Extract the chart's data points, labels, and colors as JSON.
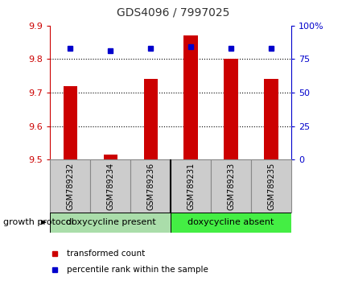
{
  "title": "GDS4096 / 7997025",
  "samples": [
    "GSM789232",
    "GSM789234",
    "GSM789236",
    "GSM789231",
    "GSM789233",
    "GSM789235"
  ],
  "red_values": [
    9.72,
    9.515,
    9.74,
    9.87,
    9.8,
    9.74
  ],
  "blue_values": [
    83,
    81,
    83,
    84,
    83,
    83
  ],
  "ymin": 9.5,
  "ymax": 9.9,
  "y2min": 0,
  "y2max": 100,
  "yticks": [
    9.5,
    9.6,
    9.7,
    9.8,
    9.9
  ],
  "y2ticks": [
    0,
    25,
    50,
    75,
    100
  ],
  "ytick_labels": [
    "9.5",
    "9.6",
    "9.7",
    "9.8",
    "9.9"
  ],
  "y2tick_labels": [
    "0",
    "25",
    "50",
    "75",
    "100%"
  ],
  "group1_label": "doxycycline present",
  "group2_label": "doxycycline absent",
  "group1_color": "#aaddaa",
  "group2_color": "#44ee44",
  "protocol_label": "growth protocol",
  "legend_red": "transformed count",
  "legend_blue": "percentile rank within the sample",
  "red_color": "#cc0000",
  "blue_color": "#0000cc",
  "bar_width": 0.35,
  "title_color": "#333333",
  "axis_color_left": "#cc0000",
  "axis_color_right": "#0000cc",
  "background_color": "#ffffff",
  "plot_bg_color": "#ffffff",
  "grid_color": "#000000",
  "label_box_color": "#cccccc",
  "label_box_edge": "#888888"
}
